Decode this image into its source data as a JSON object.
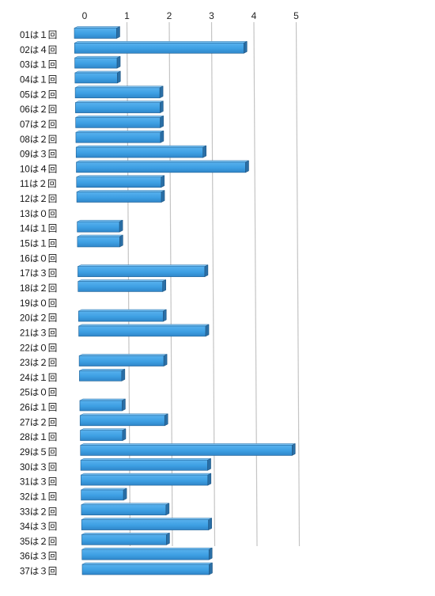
{
  "chart_data": {
    "type": "bar",
    "orientation": "horizontal",
    "three_d": true,
    "xlim": [
      0,
      5
    ],
    "x_ticks": [
      "0",
      "1",
      "2",
      "3",
      "4",
      "5"
    ],
    "grid": true,
    "bar_color": "#4aa8ea",
    "bar_dark_color": "#2a6fa6",
    "categories": [
      "01は１回",
      "02は４回",
      "03は１回",
      "04は１回",
      "05は２回",
      "06は２回",
      "07は２回",
      "08は２回",
      "09は３回",
      "10は４回",
      "11は２回",
      "12は２回",
      "13は０回",
      "14は１回",
      "15は１回",
      "16は０回",
      "17は３回",
      "18は２回",
      "19は０回",
      "20は２回",
      "21は３回",
      "22は０回",
      "23は２回",
      "24は１回",
      "25は０回",
      "26は１回",
      "27は２回",
      "28は１回",
      "29は５回",
      "30は３回",
      "31は３回",
      "32は１回",
      "33は２回",
      "34は３回",
      "35は２回",
      "36は３回",
      "37は３回"
    ],
    "values": [
      1,
      4,
      1,
      1,
      2,
      2,
      2,
      2,
      3,
      4,
      2,
      2,
      0,
      1,
      1,
      0,
      3,
      2,
      0,
      2,
      3,
      0,
      2,
      1,
      0,
      1,
      2,
      1,
      5,
      3,
      3,
      1,
      2,
      3,
      2,
      3,
      3
    ]
  }
}
